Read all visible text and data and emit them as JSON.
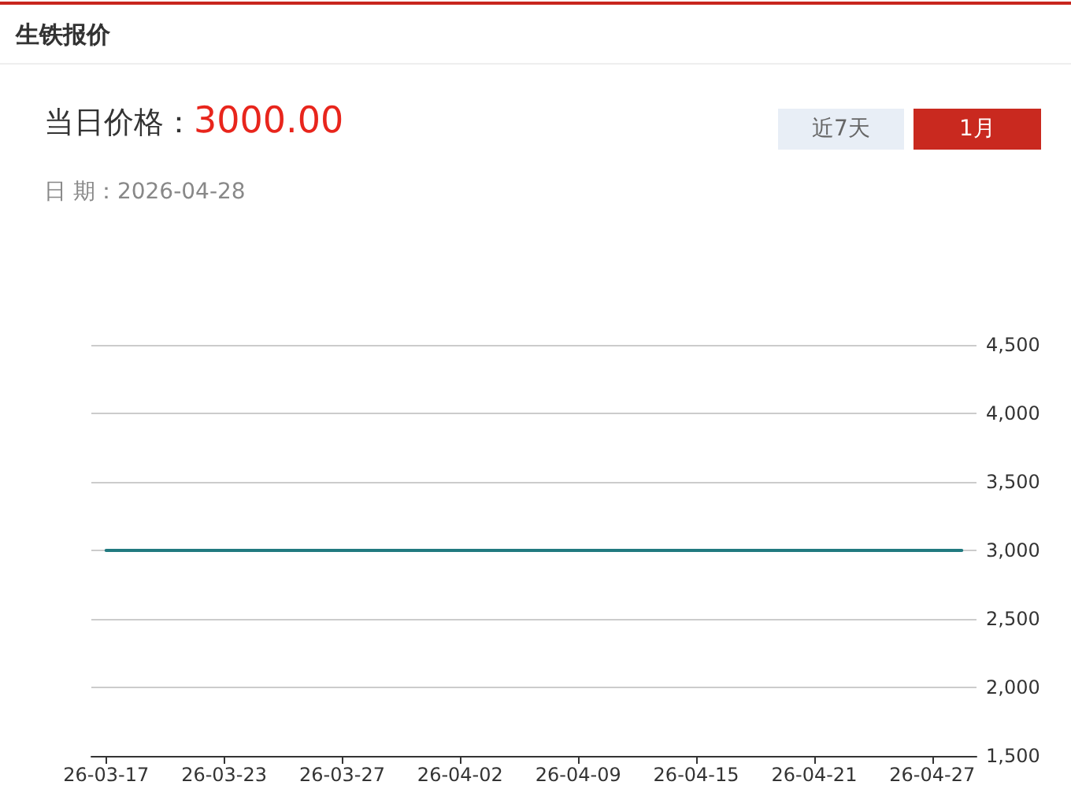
{
  "chart_data": {
    "type": "line",
    "title": "生铁报价",
    "annotations": [
      "当日价格：",
      "3000.00",
      "日 期：2026-04-28",
      "近7天",
      "1月"
    ],
    "categories": [
      "26-03-17",
      null,
      null,
      null,
      "26-03-23",
      null,
      null,
      null,
      "26-03-27",
      null,
      null,
      null,
      "26-04-02",
      null,
      null,
      null,
      "26-04-09",
      null,
      null,
      null,
      "26-04-15",
      null,
      null,
      null,
      "26-04-21",
      null,
      null,
      null,
      "26-04-27",
      null
    ],
    "values": [
      3000,
      3000,
      3000,
      3000,
      3000,
      3000,
      3000,
      3000,
      3000,
      3000,
      3000,
      3000,
      3000,
      3000,
      3000,
      3000,
      3000,
      3000,
      3000,
      3000,
      3000,
      3000,
      3000,
      3000,
      3000,
      3000,
      3000,
      3000,
      3000,
      3000
    ],
    "color": "#217a80",
    "ylim": [
      1500,
      4500
    ],
    "yticks": [
      {
        "value": 1500,
        "label": "1,500"
      },
      {
        "value": 2000,
        "label": "2,000"
      },
      {
        "value": 2500,
        "label": "2,500"
      },
      {
        "value": 3000,
        "label": "3,000"
      },
      {
        "value": 3500,
        "label": "3,500"
      },
      {
        "value": 4000,
        "label": "4,000"
      },
      {
        "value": 4500,
        "label": "4,500"
      }
    ],
    "grid": "y",
    "marker": "none"
  }
}
